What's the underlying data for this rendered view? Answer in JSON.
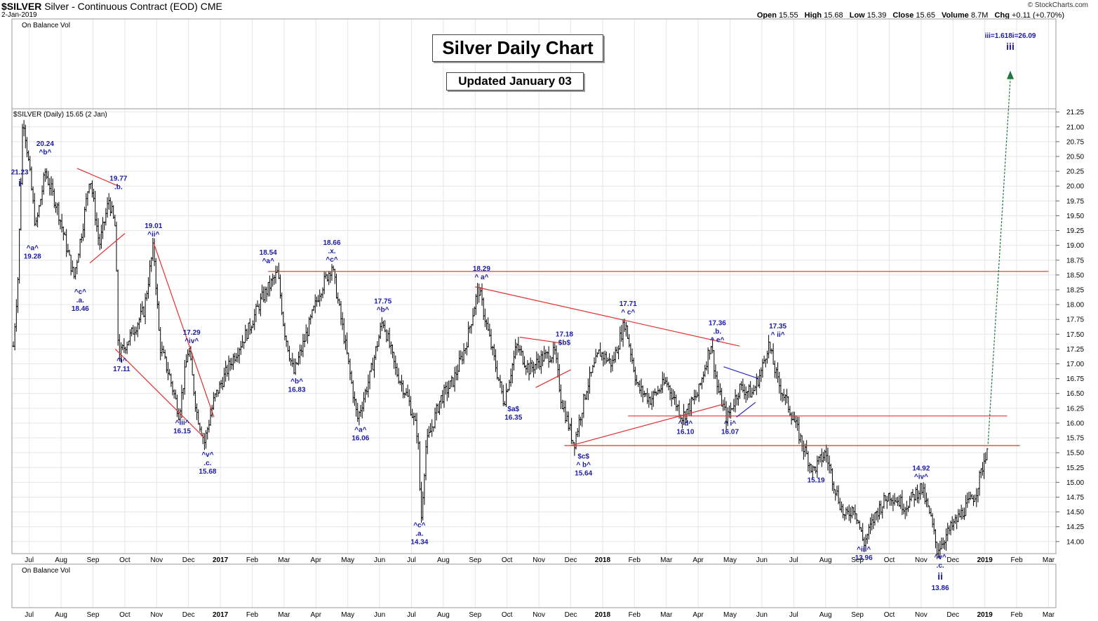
{
  "header": {
    "symbol": "$SILVER",
    "description": "Silver - Continuous Contract (EOD)",
    "exchange": "CME",
    "date": "2-Jan-2019",
    "open_label": "Open",
    "open": "15.55",
    "high_label": "High",
    "high": "15.68",
    "low_label": "Low",
    "low": "15.39",
    "close_label": "Close",
    "close": "15.65",
    "volume_label": "Volume",
    "volume": "8.7M",
    "chg_label": "Chg",
    "chg": "+0.11 (+0.70%)",
    "watermark": "© StockCharts.com"
  },
  "colors": {
    "bars": "#000000",
    "annotation": "#1a1aa8",
    "trendline": "#e03030",
    "projection": "#1e7a3c",
    "grid": "#e6e6e6",
    "wedge": "#2a2ad0"
  },
  "chart_data": {
    "type": "ohlc",
    "title": "Silver Daily Chart",
    "subtitle": "Updated January 03",
    "legend": "$SILVER (Daily) 15.65 (2 Jan)",
    "indicator_panels": [
      "On Balance Vol",
      "On Balance Vol"
    ],
    "ylim": [
      13.75,
      21.25
    ],
    "y_ticks": [
      "14.00",
      "14.25",
      "14.50",
      "14.75",
      "15.00",
      "15.25",
      "15.50",
      "15.75",
      "16.00",
      "16.25",
      "16.50",
      "16.75",
      "17.00",
      "17.25",
      "17.50",
      "17.75",
      "18.00",
      "18.25",
      "18.50",
      "18.75",
      "19.00",
      "19.25",
      "19.50",
      "19.75",
      "20.00",
      "20.25",
      "20.50",
      "20.75",
      "21.00",
      "21.25"
    ],
    "x_labels": [
      "Jul",
      "Aug",
      "Sep",
      "Oct",
      "Nov",
      "Dec",
      "2017",
      "Feb",
      "Mar",
      "Apr",
      "May",
      "Jun",
      "Jul",
      "Aug",
      "Sep",
      "Oct",
      "Nov",
      "Dec",
      "2018",
      "Feb",
      "Mar",
      "Apr",
      "May",
      "Jun",
      "Jul",
      "Aug",
      "Sep",
      "Oct",
      "Nov",
      "Dec",
      "2019",
      "Feb",
      "Mar"
    ],
    "bold_x_labels": [
      "2017",
      "2018",
      "2019"
    ],
    "x_positions": [
      0.5,
      1.5,
      2.5,
      3.5,
      4.5,
      5.5,
      6.5,
      7.5,
      8.5,
      9.5,
      10.5,
      11.5,
      12.5,
      13.5,
      14.5,
      15.5,
      16.5,
      17.5,
      18.5,
      19.5,
      20.5,
      21.5,
      22.5,
      23.5,
      24.5,
      25.5,
      26.5,
      27.5,
      28.5,
      29.5,
      30.5,
      31.5,
      32.5
    ],
    "price_path": [
      {
        "t": 0.0,
        "v": 17.3
      },
      {
        "t": 0.15,
        "v": 18.5
      },
      {
        "t": 0.3,
        "v": 21.23
      },
      {
        "t": 0.5,
        "v": 20.3
      },
      {
        "t": 0.7,
        "v": 19.28
      },
      {
        "t": 1.0,
        "v": 20.24
      },
      {
        "t": 1.4,
        "v": 19.6
      },
      {
        "t": 1.7,
        "v": 18.9
      },
      {
        "t": 1.9,
        "v": 18.46
      },
      {
        "t": 2.2,
        "v": 19.4
      },
      {
        "t": 2.4,
        "v": 20.2
      },
      {
        "t": 2.7,
        "v": 19.0
      },
      {
        "t": 3.0,
        "v": 19.77
      },
      {
        "t": 3.2,
        "v": 19.3
      },
      {
        "t": 3.3,
        "v": 17.11
      },
      {
        "t": 3.7,
        "v": 17.5
      },
      {
        "t": 4.1,
        "v": 17.9
      },
      {
        "t": 4.4,
        "v": 19.01
      },
      {
        "t": 4.6,
        "v": 17.3
      },
      {
        "t": 4.9,
        "v": 16.8
      },
      {
        "t": 5.2,
        "v": 16.15
      },
      {
        "t": 5.5,
        "v": 17.29
      },
      {
        "t": 5.75,
        "v": 16.2
      },
      {
        "t": 6.0,
        "v": 15.68
      },
      {
        "t": 6.3,
        "v": 16.4
      },
      {
        "t": 6.8,
        "v": 17.0
      },
      {
        "t": 7.4,
        "v": 17.6
      },
      {
        "t": 7.8,
        "v": 18.1
      },
      {
        "t": 8.3,
        "v": 18.54
      },
      {
        "t": 8.5,
        "v": 17.6
      },
      {
        "t": 8.8,
        "v": 16.83
      },
      {
        "t": 9.2,
        "v": 17.5
      },
      {
        "t": 9.6,
        "v": 18.2
      },
      {
        "t": 10.0,
        "v": 18.66
      },
      {
        "t": 10.4,
        "v": 17.4
      },
      {
        "t": 10.8,
        "v": 16.06
      },
      {
        "t": 11.2,
        "v": 16.8
      },
      {
        "t": 11.6,
        "v": 17.75
      },
      {
        "t": 12.0,
        "v": 16.9
      },
      {
        "t": 12.4,
        "v": 16.4
      },
      {
        "t": 12.7,
        "v": 15.8
      },
      {
        "t": 12.8,
        "v": 14.34
      },
      {
        "t": 12.95,
        "v": 15.6
      },
      {
        "t": 13.4,
        "v": 16.4
      },
      {
        "t": 13.8,
        "v": 16.7
      },
      {
        "t": 14.2,
        "v": 17.3
      },
      {
        "t": 14.6,
        "v": 18.29
      },
      {
        "t": 15.0,
        "v": 17.3
      },
      {
        "t": 15.4,
        "v": 16.35
      },
      {
        "t": 15.8,
        "v": 17.3
      },
      {
        "t": 16.2,
        "v": 16.9
      },
      {
        "t": 16.6,
        "v": 17.1
      },
      {
        "t": 17.0,
        "v": 17.18
      },
      {
        "t": 17.2,
        "v": 16.4
      },
      {
        "t": 17.6,
        "v": 15.64
      },
      {
        "t": 18.0,
        "v": 16.6
      },
      {
        "t": 18.4,
        "v": 17.2
      },
      {
        "t": 18.8,
        "v": 17.0
      },
      {
        "t": 19.2,
        "v": 17.71
      },
      {
        "t": 19.6,
        "v": 16.6
      },
      {
        "t": 20.0,
        "v": 16.4
      },
      {
        "t": 20.5,
        "v": 16.7
      },
      {
        "t": 21.0,
        "v": 16.1
      },
      {
        "t": 21.5,
        "v": 16.5
      },
      {
        "t": 21.9,
        "v": 17.36
      },
      {
        "t": 22.1,
        "v": 16.6
      },
      {
        "t": 22.4,
        "v": 16.07
      },
      {
        "t": 22.8,
        "v": 16.6
      },
      {
        "t": 23.2,
        "v": 16.5
      },
      {
        "t": 23.5,
        "v": 16.9
      },
      {
        "t": 23.7,
        "v": 17.35
      },
      {
        "t": 24.0,
        "v": 16.7
      },
      {
        "t": 24.4,
        "v": 16.2
      },
      {
        "t": 24.8,
        "v": 15.6
      },
      {
        "t": 25.1,
        "v": 15.19
      },
      {
        "t": 25.5,
        "v": 15.5
      },
      {
        "t": 25.8,
        "v": 14.9
      },
      {
        "t": 26.1,
        "v": 14.4
      },
      {
        "t": 26.4,
        "v": 14.6
      },
      {
        "t": 26.7,
        "v": 13.96
      },
      {
        "t": 27.1,
        "v": 14.5
      },
      {
        "t": 27.5,
        "v": 14.8
      },
      {
        "t": 28.0,
        "v": 14.6
      },
      {
        "t": 28.5,
        "v": 14.92
      },
      {
        "t": 28.8,
        "v": 14.4
      },
      {
        "t": 29.0,
        "v": 13.86
      },
      {
        "t": 29.4,
        "v": 14.2
      },
      {
        "t": 29.8,
        "v": 14.5
      },
      {
        "t": 30.2,
        "v": 14.8
      },
      {
        "t": 30.4,
        "v": 15.2
      },
      {
        "t": 30.6,
        "v": 15.65
      }
    ],
    "annotations": [
      {
        "t": 0.2,
        "v": 20.2,
        "lines": [
          "21.23"
        ],
        "big": "i",
        "big_after": true
      },
      {
        "t": 1.0,
        "v": 20.68,
        "lines": [
          "20.24",
          "^b^"
        ]
      },
      {
        "t": 0.6,
        "v": 18.92,
        "lines": [
          "^a^",
          "19.28"
        ]
      },
      {
        "t": 2.1,
        "v": 18.18,
        "lines": [
          "^c^",
          ".a.",
          "18.46"
        ]
      },
      {
        "t": 3.3,
        "v": 20.09,
        "lines": [
          "19.77",
          ".b."
        ]
      },
      {
        "t": 3.4,
        "v": 17.02,
        "lines": [
          "^i^",
          "17.11"
        ]
      },
      {
        "t": 4.4,
        "v": 19.29,
        "lines": [
          "19.01",
          "^ii^"
        ]
      },
      {
        "t": 5.3,
        "v": 15.97,
        "lines": [
          "^iii^",
          "16.15"
        ]
      },
      {
        "t": 5.6,
        "v": 17.49,
        "lines": [
          "17.29",
          "^iv^"
        ]
      },
      {
        "t": 6.1,
        "v": 15.43,
        "lines": [
          "^v^",
          ".c.",
          "15.68"
        ]
      },
      {
        "t": 8.0,
        "v": 18.84,
        "lines": [
          "18.54",
          "^a^"
        ]
      },
      {
        "t": 8.9,
        "v": 16.67,
        "lines": [
          "^b^",
          "16.83"
        ]
      },
      {
        "t": 10.0,
        "v": 19.01,
        "lines": [
          "18.66",
          ".x.",
          "^c^"
        ]
      },
      {
        "t": 10.9,
        "v": 15.85,
        "lines": [
          "^a^",
          "16.06"
        ]
      },
      {
        "t": 11.6,
        "v": 18.02,
        "lines": [
          "17.75",
          "^b^"
        ]
      },
      {
        "t": 12.75,
        "v": 14.24,
        "lines": [
          "^c^",
          ".a.",
          "14.34"
        ]
      },
      {
        "t": 14.7,
        "v": 18.57,
        "lines": [
          "18.29",
          "^ a^"
        ]
      },
      {
        "t": 15.7,
        "v": 16.2,
        "lines": [
          "$a$",
          "16.35"
        ]
      },
      {
        "t": 17.3,
        "v": 17.46,
        "lines": [
          "17.18",
          "$b$"
        ]
      },
      {
        "t": 17.9,
        "v": 15.4,
        "lines": [
          "$c$",
          "^ b^",
          "15.64"
        ]
      },
      {
        "t": 19.3,
        "v": 17.98,
        "lines": [
          "17.71",
          "^ c^"
        ]
      },
      {
        "t": 21.1,
        "v": 15.96,
        "lines": [
          "^ d^",
          "16.10"
        ]
      },
      {
        "t": 22.1,
        "v": 17.65,
        "lines": [
          "17.36",
          ".b.",
          "^ e^"
        ]
      },
      {
        "t": 22.5,
        "v": 15.96,
        "lines": [
          "^ i^",
          "16.07"
        ]
      },
      {
        "t": 24.0,
        "v": 17.6,
        "lines": [
          "17.35",
          "^ ii^"
        ]
      },
      {
        "t": 25.2,
        "v": 15.0,
        "lines": [
          "15.19"
        ]
      },
      {
        "t": 26.7,
        "v": 13.83,
        "lines": [
          "^iii^",
          "13.96"
        ]
      },
      {
        "t": 28.5,
        "v": 15.2,
        "lines": [
          "14.92",
          "^iv^"
        ]
      },
      {
        "t": 29.1,
        "v": 13.7,
        "lines": [
          "^v^",
          ".c."
        ],
        "big": "ii",
        "big_after": true,
        "after_lines": [
          "13.86"
        ]
      },
      {
        "t": 31.3,
        "v": 22.5,
        "lines": [
          "iii=1.618i=26.09"
        ],
        "big": "iii",
        "big_after": true
      }
    ],
    "trendlines": [
      {
        "type": "horizontal",
        "from_t": 8.0,
        "to_t": 32.5,
        "v": 18.56
      },
      {
        "type": "horizontal",
        "from_t": 19.3,
        "to_t": 31.2,
        "v": 16.12
      },
      {
        "type": "horizontal",
        "from_t": 17.3,
        "to_t": 31.6,
        "v": 15.62
      },
      {
        "type": "segment",
        "points": [
          [
            2.0,
            20.3
          ],
          [
            3.3,
            20.0
          ]
        ]
      },
      {
        "type": "segment",
        "points": [
          [
            2.4,
            18.7
          ],
          [
            3.5,
            19.2
          ]
        ]
      },
      {
        "type": "segment",
        "points": [
          [
            3.2,
            17.25
          ],
          [
            6.0,
            15.75
          ]
        ]
      },
      {
        "type": "segment",
        "points": [
          [
            4.4,
            19.05
          ],
          [
            6.3,
            16.1
          ]
        ]
      },
      {
        "type": "segment",
        "points": [
          [
            14.5,
            18.3
          ],
          [
            22.8,
            17.3
          ]
        ]
      },
      {
        "type": "segment",
        "points": [
          [
            17.5,
            15.62
          ],
          [
            22.3,
            16.32
          ]
        ]
      },
      {
        "type": "segment",
        "points": [
          [
            15.9,
            17.45
          ],
          [
            17.2,
            17.35
          ]
        ]
      },
      {
        "type": "segment",
        "points": [
          [
            16.4,
            16.6
          ],
          [
            17.5,
            16.9
          ]
        ]
      },
      {
        "type": "segment",
        "points": [
          [
            22.7,
            16.1
          ],
          [
            23.3,
            16.35
          ]
        ],
        "color": "wedge"
      },
      {
        "type": "segment",
        "points": [
          [
            22.3,
            16.95
          ],
          [
            23.4,
            16.75
          ]
        ],
        "color": "wedge"
      }
    ],
    "projection": {
      "from": [
        30.6,
        15.65
      ],
      "to": [
        31.3,
        21.9
      ]
    }
  }
}
